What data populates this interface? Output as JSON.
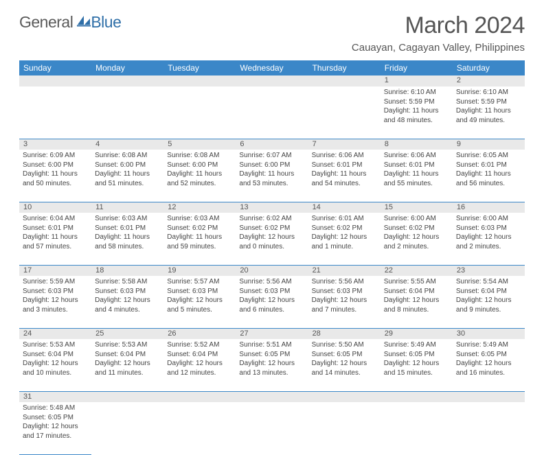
{
  "brand": {
    "general": "General",
    "blue": "Blue"
  },
  "title": "March 2024",
  "location": "Cauayan, Cagayan Valley, Philippines",
  "colors": {
    "header_bg": "#3b87c8",
    "header_text": "#ffffff",
    "gray_row": "#e9e9e9",
    "border": "#3b87c8"
  },
  "days_of_week": [
    "Sunday",
    "Monday",
    "Tuesday",
    "Wednesday",
    "Thursday",
    "Friday",
    "Saturday"
  ],
  "start_day_index": 5,
  "days": [
    {
      "n": 1,
      "sr": "6:10 AM",
      "ss": "5:59 PM",
      "dl": "11 hours and 48 minutes."
    },
    {
      "n": 2,
      "sr": "6:10 AM",
      "ss": "5:59 PM",
      "dl": "11 hours and 49 minutes."
    },
    {
      "n": 3,
      "sr": "6:09 AM",
      "ss": "6:00 PM",
      "dl": "11 hours and 50 minutes."
    },
    {
      "n": 4,
      "sr": "6:08 AM",
      "ss": "6:00 PM",
      "dl": "11 hours and 51 minutes."
    },
    {
      "n": 5,
      "sr": "6:08 AM",
      "ss": "6:00 PM",
      "dl": "11 hours and 52 minutes."
    },
    {
      "n": 6,
      "sr": "6:07 AM",
      "ss": "6:00 PM",
      "dl": "11 hours and 53 minutes."
    },
    {
      "n": 7,
      "sr": "6:06 AM",
      "ss": "6:01 PM",
      "dl": "11 hours and 54 minutes."
    },
    {
      "n": 8,
      "sr": "6:06 AM",
      "ss": "6:01 PM",
      "dl": "11 hours and 55 minutes."
    },
    {
      "n": 9,
      "sr": "6:05 AM",
      "ss": "6:01 PM",
      "dl": "11 hours and 56 minutes."
    },
    {
      "n": 10,
      "sr": "6:04 AM",
      "ss": "6:01 PM",
      "dl": "11 hours and 57 minutes."
    },
    {
      "n": 11,
      "sr": "6:03 AM",
      "ss": "6:01 PM",
      "dl": "11 hours and 58 minutes."
    },
    {
      "n": 12,
      "sr": "6:03 AM",
      "ss": "6:02 PM",
      "dl": "11 hours and 59 minutes."
    },
    {
      "n": 13,
      "sr": "6:02 AM",
      "ss": "6:02 PM",
      "dl": "12 hours and 0 minutes."
    },
    {
      "n": 14,
      "sr": "6:01 AM",
      "ss": "6:02 PM",
      "dl": "12 hours and 1 minute."
    },
    {
      "n": 15,
      "sr": "6:00 AM",
      "ss": "6:02 PM",
      "dl": "12 hours and 2 minutes."
    },
    {
      "n": 16,
      "sr": "6:00 AM",
      "ss": "6:03 PM",
      "dl": "12 hours and 2 minutes."
    },
    {
      "n": 17,
      "sr": "5:59 AM",
      "ss": "6:03 PM",
      "dl": "12 hours and 3 minutes."
    },
    {
      "n": 18,
      "sr": "5:58 AM",
      "ss": "6:03 PM",
      "dl": "12 hours and 4 minutes."
    },
    {
      "n": 19,
      "sr": "5:57 AM",
      "ss": "6:03 PM",
      "dl": "12 hours and 5 minutes."
    },
    {
      "n": 20,
      "sr": "5:56 AM",
      "ss": "6:03 PM",
      "dl": "12 hours and 6 minutes."
    },
    {
      "n": 21,
      "sr": "5:56 AM",
      "ss": "6:03 PM",
      "dl": "12 hours and 7 minutes."
    },
    {
      "n": 22,
      "sr": "5:55 AM",
      "ss": "6:04 PM",
      "dl": "12 hours and 8 minutes."
    },
    {
      "n": 23,
      "sr": "5:54 AM",
      "ss": "6:04 PM",
      "dl": "12 hours and 9 minutes."
    },
    {
      "n": 24,
      "sr": "5:53 AM",
      "ss": "6:04 PM",
      "dl": "12 hours and 10 minutes."
    },
    {
      "n": 25,
      "sr": "5:53 AM",
      "ss": "6:04 PM",
      "dl": "12 hours and 11 minutes."
    },
    {
      "n": 26,
      "sr": "5:52 AM",
      "ss": "6:04 PM",
      "dl": "12 hours and 12 minutes."
    },
    {
      "n": 27,
      "sr": "5:51 AM",
      "ss": "6:05 PM",
      "dl": "12 hours and 13 minutes."
    },
    {
      "n": 28,
      "sr": "5:50 AM",
      "ss": "6:05 PM",
      "dl": "12 hours and 14 minutes."
    },
    {
      "n": 29,
      "sr": "5:49 AM",
      "ss": "6:05 PM",
      "dl": "12 hours and 15 minutes."
    },
    {
      "n": 30,
      "sr": "5:49 AM",
      "ss": "6:05 PM",
      "dl": "12 hours and 16 minutes."
    },
    {
      "n": 31,
      "sr": "5:48 AM",
      "ss": "6:05 PM",
      "dl": "12 hours and 17 minutes."
    }
  ],
  "labels": {
    "sunrise": "Sunrise:",
    "sunset": "Sunset:",
    "daylight": "Daylight:"
  }
}
